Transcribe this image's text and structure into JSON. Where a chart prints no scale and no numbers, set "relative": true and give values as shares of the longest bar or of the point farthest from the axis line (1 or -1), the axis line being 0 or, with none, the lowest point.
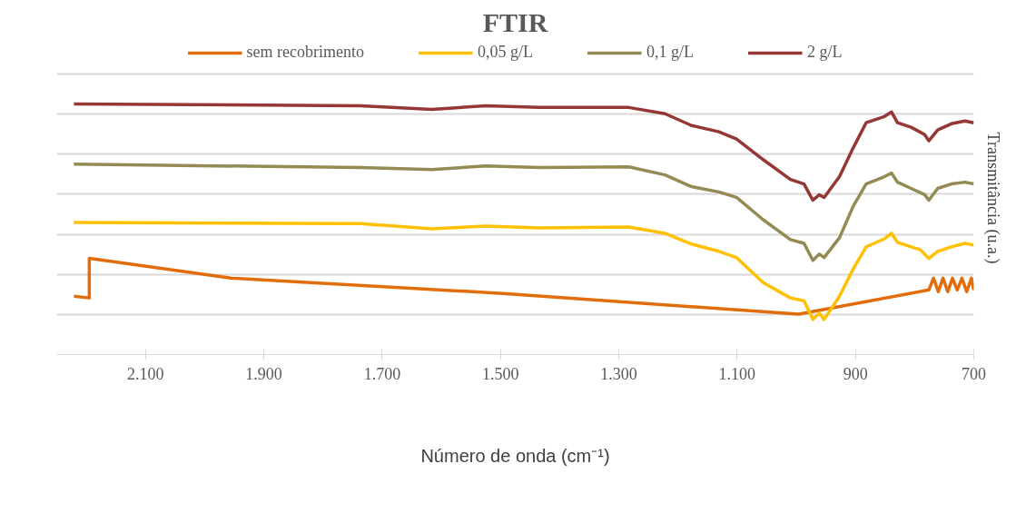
{
  "chart_data": {
    "type": "line",
    "title": "FTIR",
    "xlabel": "Número de onda (cm⁻¹)",
    "ylabel": "Transmitância (u.a.)",
    "relative": true,
    "xlim": [
      2250,
      700
    ],
    "xticks": [
      {
        "value": 2100,
        "label": "2.100"
      },
      {
        "value": 1900,
        "label": "1.900"
      },
      {
        "value": 1700,
        "label": "1.700"
      },
      {
        "value": 1500,
        "label": "1.500"
      },
      {
        "value": 1300,
        "label": "1.300"
      },
      {
        "value": 1100,
        "label": "1.100"
      },
      {
        "value": 900,
        "label": "900"
      },
      {
        "value": 700,
        "label": "700"
      }
    ],
    "grid": "y",
    "legend": "top",
    "line_style": "solid",
    "tick_labels": "x",
    "series": [
      {
        "name": "sem recobrimento",
        "color": "#e36c0a",
        "x": [
          2221,
          2195,
          2195,
          1956,
          1495,
          996,
          776,
          768,
          760,
          752,
          744,
          736,
          728,
          720,
          712,
          704,
          700
        ],
        "values": [
          0.233,
          0.226,
          0.384,
          0.305,
          0.244,
          0.161,
          0.258,
          0.305,
          0.251,
          0.305,
          0.251,
          0.305,
          0.258,
          0.305,
          0.251,
          0.305,
          0.258
        ]
      },
      {
        "name": "0,05 g/L",
        "color": "#ffc000",
        "x": [
          2221,
          1737,
          1616,
          1525,
          1434,
          1283,
          1222,
          1177,
          1131,
          1101,
          1056,
          1010,
          987,
          972,
          961,
          953,
          927,
          904,
          882,
          851,
          839,
          829,
          806,
          791,
          776,
          761,
          738,
          715,
          700
        ],
        "values": [
          0.527,
          0.523,
          0.502,
          0.513,
          0.505,
          0.509,
          0.484,
          0.441,
          0.412,
          0.387,
          0.287,
          0.226,
          0.215,
          0.14,
          0.165,
          0.14,
          0.233,
          0.341,
          0.43,
          0.462,
          0.484,
          0.448,
          0.43,
          0.419,
          0.384,
          0.412,
          0.43,
          0.444,
          0.437
        ]
      },
      {
        "name": "0,1 g/L",
        "color": "#948a54",
        "x": [
          2221,
          1737,
          1616,
          1525,
          1434,
          1283,
          1222,
          1177,
          1131,
          1101,
          1056,
          1010,
          987,
          972,
          961,
          953,
          927,
          904,
          882,
          851,
          839,
          829,
          806,
          783,
          776,
          761,
          738,
          715,
          700
        ],
        "values": [
          0.76,
          0.746,
          0.738,
          0.753,
          0.746,
          0.749,
          0.717,
          0.67,
          0.649,
          0.627,
          0.538,
          0.459,
          0.444,
          0.376,
          0.401,
          0.387,
          0.466,
          0.591,
          0.681,
          0.71,
          0.724,
          0.688,
          0.663,
          0.638,
          0.616,
          0.663,
          0.681,
          0.688,
          0.681
        ]
      },
      {
        "name": "2 g/L",
        "color": "#953735",
        "x": [
          2221,
          1737,
          1616,
          1525,
          1434,
          1283,
          1222,
          1177,
          1131,
          1101,
          1056,
          1010,
          987,
          972,
          961,
          953,
          927,
          904,
          882,
          851,
          839,
          829,
          806,
          783,
          776,
          761,
          738,
          715,
          700
        ],
        "values": [
          1.0,
          0.993,
          0.978,
          0.993,
          0.986,
          0.986,
          0.961,
          0.914,
          0.889,
          0.86,
          0.778,
          0.699,
          0.681,
          0.616,
          0.638,
          0.627,
          0.71,
          0.824,
          0.925,
          0.95,
          0.968,
          0.925,
          0.907,
          0.878,
          0.853,
          0.896,
          0.921,
          0.932,
          0.925
        ]
      }
    ]
  }
}
